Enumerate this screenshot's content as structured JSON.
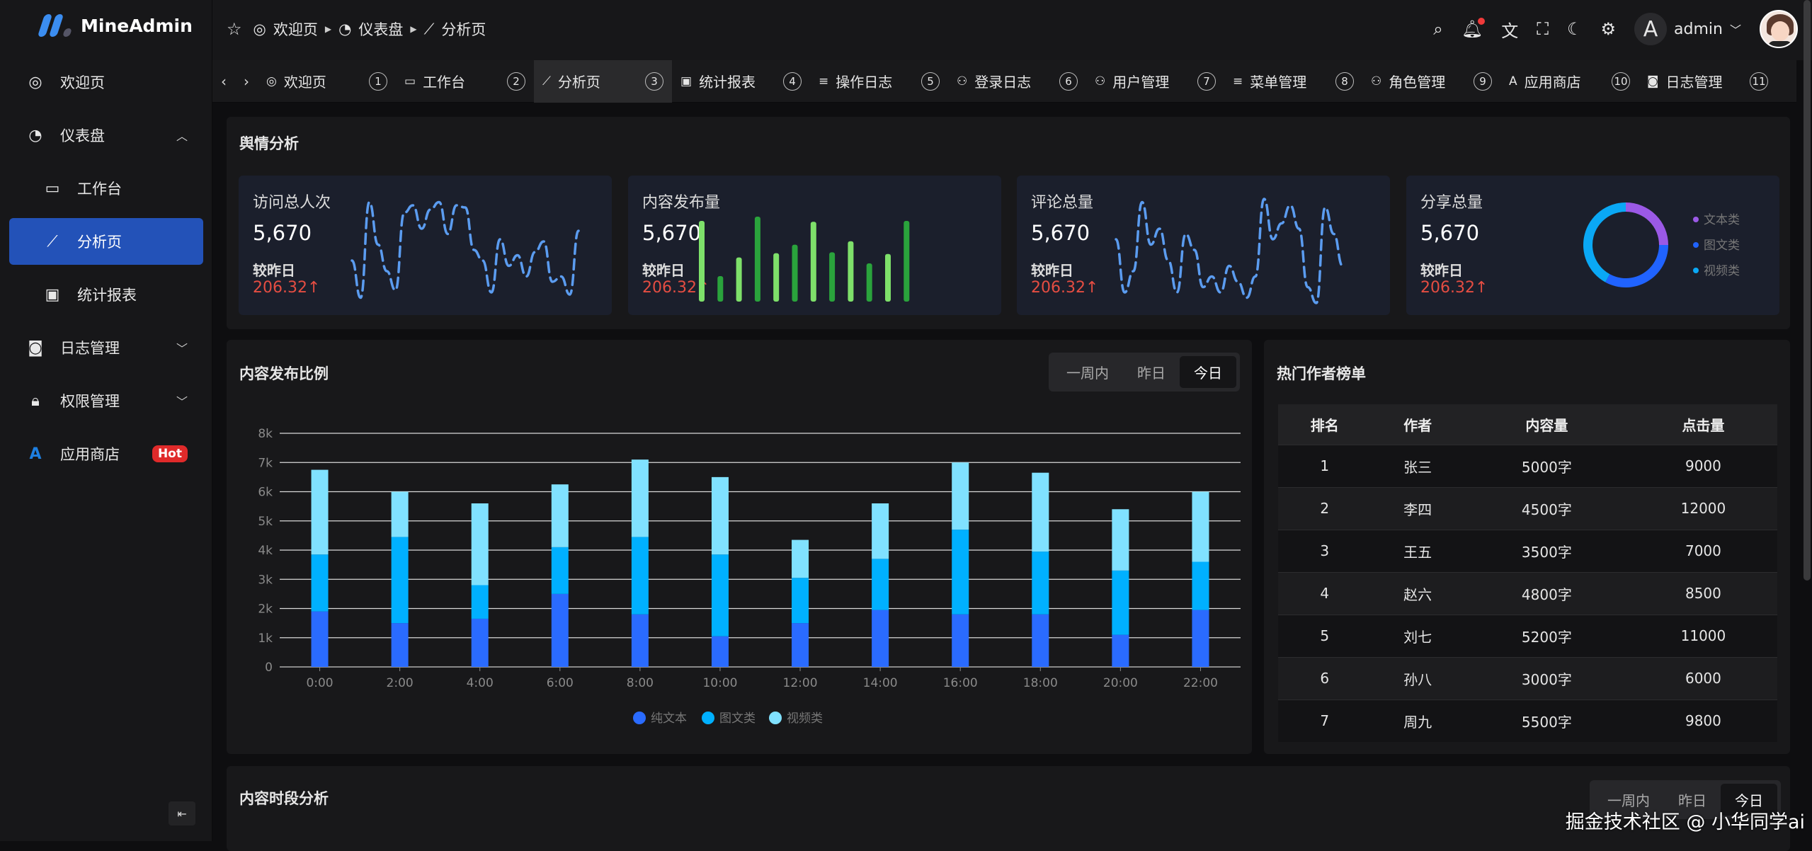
{
  "app": {
    "name": "MineAdmin"
  },
  "sidebar": {
    "items": [
      {
        "label": "欢迎页",
        "icon": "welcome-icon"
      },
      {
        "label": "仪表盘",
        "icon": "dashboard-icon",
        "expanded": true
      },
      {
        "label": "工作台",
        "icon": "laptop-icon"
      },
      {
        "label": "分析页",
        "icon": "chart-line-icon",
        "active": true
      },
      {
        "label": "统计报表",
        "icon": "report-icon"
      },
      {
        "label": "日志管理",
        "icon": "camera-icon"
      },
      {
        "label": "权限管理",
        "icon": "lock-icon"
      },
      {
        "label": "应用商店",
        "icon": "azure-icon",
        "badge": "Hot"
      }
    ]
  },
  "breadcrumb": [
    "欢迎页",
    "仪表盘",
    "分析页"
  ],
  "header": {
    "username": "admin",
    "avatar_letter": "A"
  },
  "tabs": [
    {
      "label": "欢迎页",
      "num": "1"
    },
    {
      "label": "工作台",
      "num": "2"
    },
    {
      "label": "分析页",
      "num": "3",
      "active": true
    },
    {
      "label": "统计报表",
      "num": "4"
    },
    {
      "label": "操作日志",
      "num": "5"
    },
    {
      "label": "登录日志",
      "num": "6"
    },
    {
      "label": "用户管理",
      "num": "7"
    },
    {
      "label": "菜单管理",
      "num": "8"
    },
    {
      "label": "角色管理",
      "num": "9"
    },
    {
      "label": "应用商店",
      "num": "10"
    },
    {
      "label": "日志管理",
      "num": "11"
    }
  ],
  "sentiment": {
    "title": "舆情分析",
    "cards": [
      {
        "label": "访问总人次",
        "value": "5,670",
        "compare": "较昨日",
        "delta": "206.32↑"
      },
      {
        "label": "内容发布量",
        "value": "5,670",
        "compare": "较昨日",
        "delta": "206.32↑"
      },
      {
        "label": "评论总量",
        "value": "5,670",
        "compare": "较昨日",
        "delta": "206.32↑"
      },
      {
        "label": "分享总量",
        "value": "5,670",
        "compare": "较昨日",
        "delta": "206.32↑"
      }
    ]
  },
  "segment": [
    "一周内",
    "昨日",
    "今日"
  ],
  "authors": {
    "title": "热门作者榜单",
    "columns": [
      "排名",
      "作者",
      "内容量",
      "点击量"
    ],
    "rows": [
      [
        "1",
        "张三",
        "5000字",
        "9000"
      ],
      [
        "2",
        "李四",
        "4500字",
        "12000"
      ],
      [
        "3",
        "王五",
        "3500字",
        "7000"
      ],
      [
        "4",
        "赵六",
        "4800字",
        "8500"
      ],
      [
        "5",
        "刘七",
        "5200字",
        "11000"
      ],
      [
        "6",
        "孙八",
        "3000字",
        "6000"
      ],
      [
        "7",
        "周九",
        "5500字",
        "9800"
      ]
    ]
  },
  "bottom": {
    "title": "内容时段分析"
  },
  "watermark": "掘金技术社区 @ 小华同学ai",
  "colors": {
    "accent": "#2352b8",
    "delta": "#e54d42",
    "text": "#2a6bff",
    "image": "#00b0ff",
    "video": "#80e1ff"
  },
  "chart_data": [
    {
      "type": "bar",
      "stacked": true,
      "title": "内容发布比例",
      "categories": [
        "0:00",
        "2:00",
        "4:00",
        "6:00",
        "8:00",
        "10:00",
        "12:00",
        "14:00",
        "16:00",
        "18:00",
        "20:00",
        "22:00"
      ],
      "series": [
        {
          "name": "纯文本",
          "color": "#2a6bff",
          "values": [
            1900,
            1500,
            1650,
            2500,
            1800,
            1050,
            1500,
            1950,
            1800,
            1800,
            1100,
            1950
          ]
        },
        {
          "name": "图文类",
          "color": "#00b0ff",
          "values": [
            1950,
            2950,
            1150,
            1600,
            2650,
            2800,
            1550,
            1750,
            2900,
            2150,
            2200,
            1650
          ]
        },
        {
          "name": "视频类",
          "color": "#80e1ff",
          "values": [
            2900,
            1550,
            2800,
            2150,
            2650,
            2650,
            1300,
            1900,
            2300,
            2700,
            2100,
            2400
          ]
        }
      ],
      "yticks": [
        "0",
        "1k",
        "2k",
        "3k",
        "4k",
        "5k",
        "6k",
        "7k",
        "8k"
      ],
      "ylim": [
        0,
        8000
      ],
      "grid": true,
      "legend": "bottom"
    },
    {
      "type": "line",
      "dashed": true,
      "color": "#5b9cf0",
      "values": [
        40,
        5,
        95,
        55,
        30,
        12,
        85,
        92,
        70,
        88,
        95,
        65,
        92,
        90,
        50,
        40,
        10,
        60,
        35,
        45,
        25,
        48,
        58,
        20,
        25,
        8,
        68
      ]
    },
    {
      "type": "bar",
      "colors": [
        "#7ee06a",
        "#2aa33c"
      ],
      "values": [
        95,
        30,
        52,
        100,
        57,
        67,
        94,
        58,
        71,
        45,
        56,
        95
      ]
    },
    {
      "type": "line",
      "dashed": true,
      "color": "#5b9cf0",
      "values": [
        60,
        10,
        30,
        95,
        55,
        70,
        40,
        10,
        65,
        50,
        15,
        25,
        10,
        35,
        20,
        5,
        25,
        98,
        60,
        75,
        92,
        70,
        15,
        0,
        90,
        65,
        35
      ]
    },
    {
      "type": "pie",
      "donut": true,
      "labels": [
        "文本类",
        "图文类",
        "视频类"
      ],
      "values": [
        25,
        33,
        42
      ],
      "colors": [
        "#9b59e6",
        "#2063ff",
        "#0aa8f5"
      ],
      "legend": "right"
    }
  ]
}
